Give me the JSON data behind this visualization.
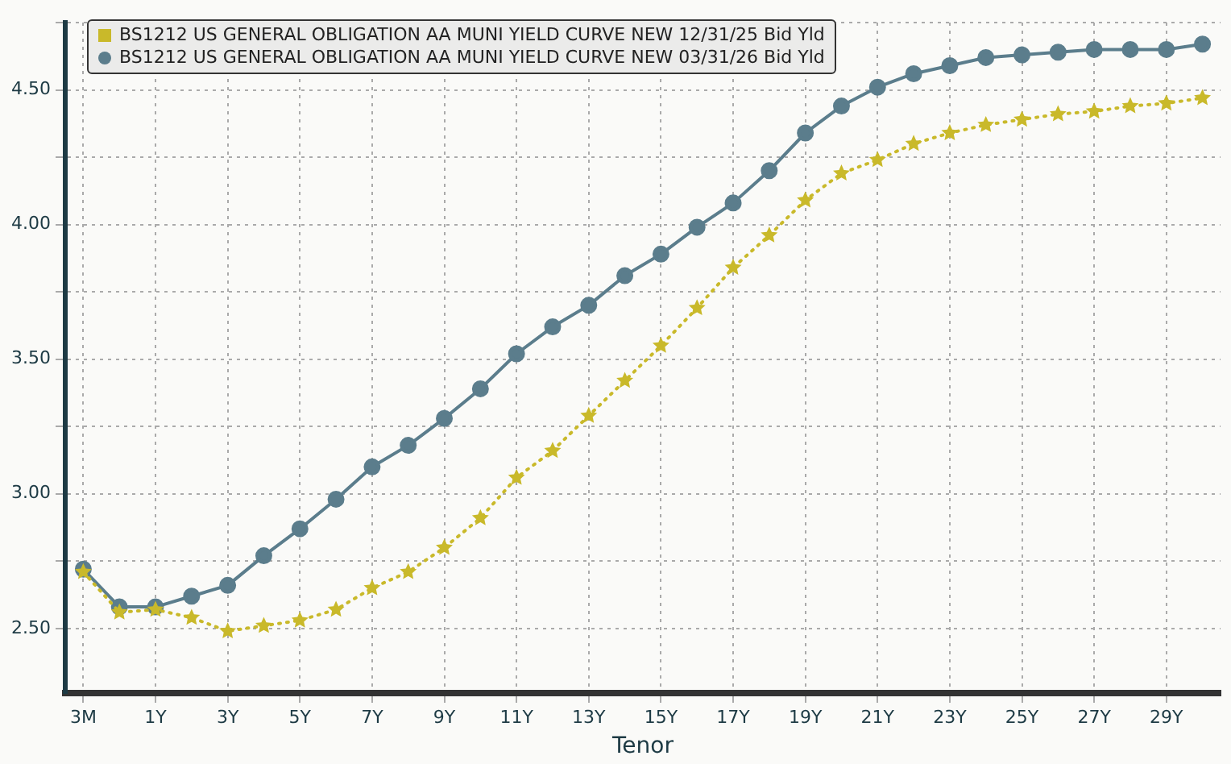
{
  "chart_data": {
    "type": "line",
    "xlabel": "Tenor",
    "categories": [
      "3M",
      null,
      "1Y",
      null,
      "3Y",
      null,
      "5Y",
      null,
      "7Y",
      null,
      "9Y",
      null,
      "11Y",
      null,
      "13Y",
      null,
      "15Y",
      null,
      "17Y",
      null,
      "19Y",
      null,
      "21Y",
      null,
      "23Y",
      null,
      "25Y",
      null,
      "27Y",
      null,
      "29Y",
      null
    ],
    "ylim": [
      2.26,
      4.75
    ],
    "yticks": [
      {
        "value": 2.5,
        "label": "2.50"
      },
      {
        "value": 2.75,
        "label": null
      },
      {
        "value": 3.0,
        "label": "3.00"
      },
      {
        "value": 3.25,
        "label": null
      },
      {
        "value": 3.5,
        "label": "3.50"
      },
      {
        "value": 3.75,
        "label": null
      },
      {
        "value": 4.0,
        "label": "4.00"
      },
      {
        "value": 4.25,
        "label": null
      },
      {
        "value": 4.5,
        "label": "4.50"
      },
      {
        "value": 4.75,
        "label": null
      }
    ],
    "grid": true,
    "legend": "top left",
    "series": [
      {
        "name": "BS1212 US GENERAL OBLIGATION AA MUNI YIELD CURVE NEW 12/31/25 Bid Yld",
        "color": "#c9b92a",
        "marker": "star",
        "line_style": "dotted",
        "values": [
          2.71,
          2.56,
          2.57,
          2.54,
          2.49,
          2.51,
          2.53,
          2.57,
          2.65,
          2.71,
          2.8,
          2.91,
          3.06,
          3.16,
          3.29,
          3.42,
          3.55,
          3.69,
          3.84,
          3.96,
          4.09,
          4.19,
          4.24,
          4.3,
          4.34,
          4.37,
          4.39,
          4.41,
          4.42,
          4.44,
          4.45,
          4.47
        ]
      },
      {
        "name": "BS1212 US GENERAL OBLIGATION AA MUNI YIELD CURVE NEW 03/31/26 Bid Yld",
        "color": "#5b7d8c",
        "marker": "circle",
        "line_style": "solid",
        "values": [
          2.72,
          2.58,
          2.58,
          2.62,
          2.66,
          2.77,
          2.87,
          2.98,
          3.1,
          3.18,
          3.28,
          3.39,
          3.52,
          3.62,
          3.7,
          3.81,
          3.89,
          3.99,
          4.08,
          4.2,
          4.34,
          4.44,
          4.51,
          4.56,
          4.59,
          4.62,
          4.63,
          4.64,
          4.65,
          4.65,
          4.65,
          4.67
        ]
      }
    ]
  }
}
